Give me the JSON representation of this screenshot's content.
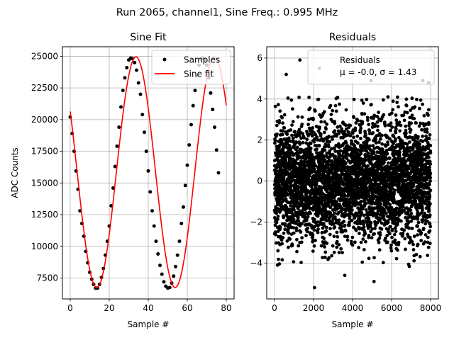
{
  "figure_title": "Run 2065, channel1, Sine Freq.: 0.995 MHz",
  "chart_data": [
    {
      "type": "scatter+line",
      "title": "Sine Fit",
      "xlabel": "Sample #",
      "ylabel": "ADC Counts",
      "xlim": [
        -4,
        84
      ],
      "ylim": [
        5850,
        25750
      ],
      "xticks": [
        0,
        20,
        40,
        60,
        80
      ],
      "yticks": [
        7500,
        10000,
        12500,
        15000,
        17500,
        20000,
        22500,
        25000
      ],
      "xtick_labels": [
        "0",
        "20",
        "40",
        "60",
        "80"
      ],
      "ytick_labels": [
        "7500",
        "10000",
        "12500",
        "15000",
        "17500",
        "20000",
        "22500",
        "25000"
      ],
      "grid": true,
      "legend_position": "top-right",
      "series": [
        {
          "name": "Samples",
          "kind": "markers",
          "color": "#000000",
          "x": [
            0,
            1,
            2,
            3,
            4,
            5,
            6,
            7,
            8,
            9,
            10,
            11,
            12,
            13,
            14,
            15,
            16,
            17,
            18,
            19,
            20,
            21,
            22,
            23,
            24,
            25,
            26,
            27,
            28,
            29,
            30,
            31,
            32,
            33,
            34,
            35,
            36,
            37,
            38,
            39,
            40,
            41,
            42,
            43,
            44,
            45,
            46,
            47,
            48,
            49,
            50,
            51,
            52,
            53,
            54,
            55,
            56,
            57,
            58,
            59,
            60,
            61,
            62,
            63,
            64,
            65,
            66,
            67,
            68,
            69,
            70,
            71,
            72,
            73,
            74,
            75,
            76,
            77,
            78,
            79,
            80
          ],
          "y": [
            20200,
            18900,
            17500,
            15950,
            14500,
            12800,
            11800,
            10800,
            9600,
            8700,
            7950,
            7400,
            7000,
            6700,
            6700,
            7000,
            7550,
            8250,
            9300,
            10400,
            11600,
            13200,
            14600,
            16300,
            17900,
            19400,
            21000,
            22300,
            23300,
            24100,
            24700,
            24850,
            24800,
            24500,
            23900,
            22900,
            22000,
            20400,
            19000,
            17500,
            15950,
            14300,
            12800,
            11600,
            10400,
            9400,
            8500,
            7800,
            7200,
            6850,
            6700,
            6750,
            7100,
            7650,
            8400,
            9300,
            10400,
            11800,
            13100,
            14800,
            16400,
            18000,
            19600,
            21100,
            22300,
            23500,
            24300,
            24800,
            24850,
            24700,
            24300,
            23300,
            22100,
            20800,
            19400,
            17600,
            15800,
            null,
            null,
            null,
            null
          ]
        },
        {
          "name": "Sine fit",
          "kind": "line",
          "color": "#ff0000",
          "model": {
            "offset": 15850,
            "amplitude": 9100,
            "period": 40.2,
            "phase_peak_sample": 33.7
          },
          "x_range": [
            0,
            80
          ]
        }
      ]
    },
    {
      "type": "scatter",
      "title": "Residuals",
      "xlabel": "Sample #",
      "ylabel": "",
      "xlim": [
        -400,
        8400
      ],
      "ylim": [
        -5.75,
        6.55
      ],
      "xticks": [
        0,
        2000,
        4000,
        6000,
        8000
      ],
      "yticks": [
        -4,
        -2,
        0,
        2,
        4,
        6
      ],
      "xtick_labels": [
        "0",
        "2000",
        "4000",
        "6000",
        "8000"
      ],
      "ytick_labels": [
        "−4",
        "−2",
        "0",
        "2",
        "4",
        "6"
      ],
      "grid": true,
      "legend_position": "top-right",
      "series": [
        {
          "name": "Residuals",
          "kind": "markers",
          "color": "#000000",
          "n_points": 8000,
          "mean": -0.0,
          "sigma": 1.43,
          "x_range": [
            0,
            7999
          ],
          "outliers": [
            {
              "x": 1300,
              "y": 5.9
            },
            {
              "x": 2300,
              "y": 5.5
            },
            {
              "x": 2050,
              "y": -5.2
            },
            {
              "x": 5100,
              "y": -4.9
            },
            {
              "x": 4950,
              "y": 4.9
            },
            {
              "x": 600,
              "y": 5.2
            },
            {
              "x": 7600,
              "y": 4.9
            },
            {
              "x": 3600,
              "y": -4.6
            },
            {
              "x": 150,
              "y": -4.1
            },
            {
              "x": 7900,
              "y": 4.8
            }
          ]
        }
      ],
      "legend_stats_text": "μ = -0.0, σ = 1.43"
    }
  ]
}
